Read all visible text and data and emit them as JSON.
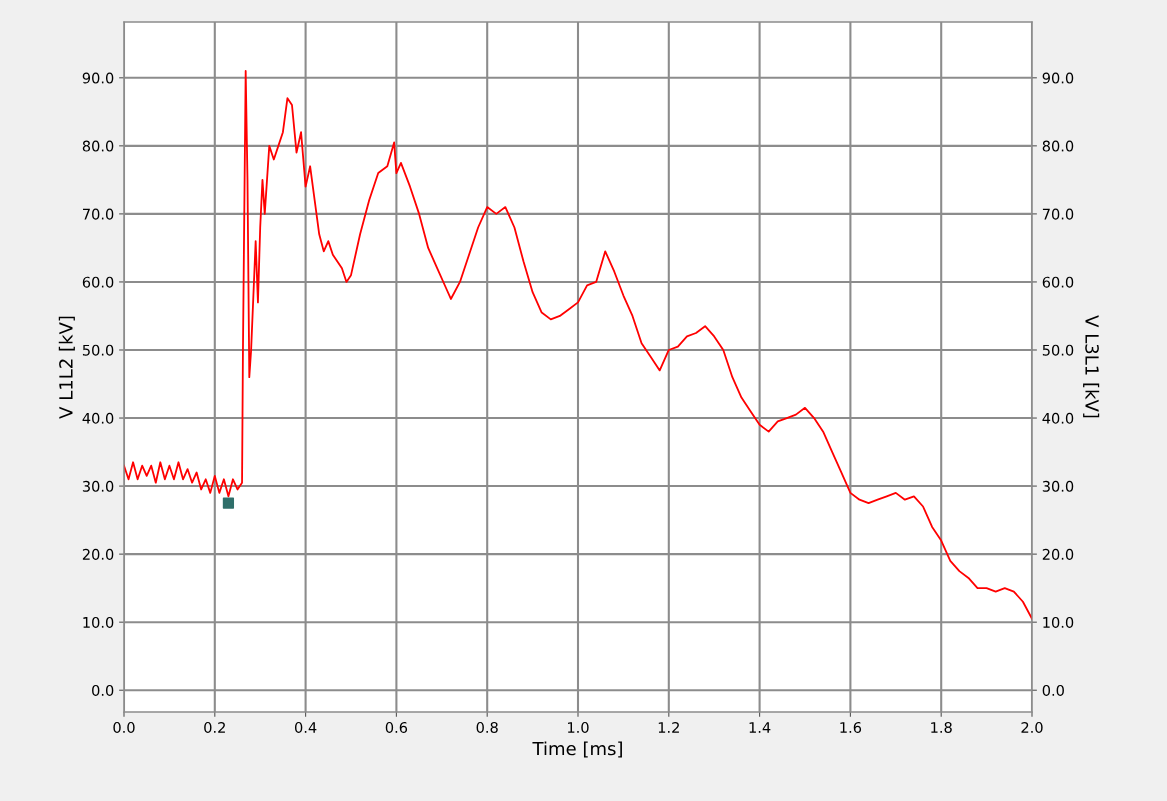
{
  "chart_data": {
    "type": "line",
    "xlabel": "Time [ms]",
    "ylabel": "V L1L2 [kV]",
    "y2label": "V L3L1 [kV]",
    "xlim": [
      0,
      2.0
    ],
    "ylim": [
      -3.2,
      98.2
    ],
    "y2lim": [
      -3.2,
      98.2
    ],
    "xticks": [
      {
        "value": 0,
        "label": "0.0"
      },
      {
        "value": 0.2,
        "label": "0.2"
      },
      {
        "value": 0.4,
        "label": "0.4"
      },
      {
        "value": 0.6,
        "label": "0.6"
      },
      {
        "value": 0.8,
        "label": "0.8"
      },
      {
        "value": 1.0,
        "label": "1.0"
      },
      {
        "value": 1.2,
        "label": "1.2"
      },
      {
        "value": 1.4,
        "label": "1.4"
      },
      {
        "value": 1.6,
        "label": "1.6"
      },
      {
        "value": 1.8,
        "label": "1.8"
      },
      {
        "value": 2.0,
        "label": "2.0"
      }
    ],
    "yticks": [
      {
        "value": 0,
        "label": "0.0"
      },
      {
        "value": 10,
        "label": "10.0"
      },
      {
        "value": 20,
        "label": "20.0"
      },
      {
        "value": 30,
        "label": "30.0"
      },
      {
        "value": 40,
        "label": "40.0"
      },
      {
        "value": 50,
        "label": "50.0"
      },
      {
        "value": 60,
        "label": "60.0"
      },
      {
        "value": 70,
        "label": "70.0"
      },
      {
        "value": 80,
        "label": "80.0"
      },
      {
        "value": 90,
        "label": "90.0"
      }
    ],
    "y2ticks": [
      {
        "value": 0,
        "label": "0.0"
      },
      {
        "value": 10,
        "label": "10.0"
      },
      {
        "value": 20,
        "label": "20.0"
      },
      {
        "value": 30,
        "label": "30.0"
      },
      {
        "value": 40,
        "label": "40.0"
      },
      {
        "value": 50,
        "label": "50.0"
      },
      {
        "value": 60,
        "label": "60.0"
      },
      {
        "value": 70,
        "label": "70.0"
      },
      {
        "value": 80,
        "label": "80.0"
      },
      {
        "value": 90,
        "label": "90.0"
      }
    ],
    "grid": true,
    "line_style": "solid",
    "marker": "none",
    "series": [
      {
        "color": "#ff0000",
        "x": [
          0.0,
          0.01,
          0.02,
          0.03,
          0.04,
          0.05,
          0.06,
          0.07,
          0.08,
          0.09,
          0.1,
          0.11,
          0.12,
          0.13,
          0.14,
          0.15,
          0.16,
          0.17,
          0.18,
          0.19,
          0.2,
          0.21,
          0.22,
          0.23,
          0.24,
          0.25,
          0.26,
          0.262,
          0.268,
          0.272,
          0.276,
          0.28,
          0.285,
          0.29,
          0.295,
          0.3,
          0.305,
          0.31,
          0.32,
          0.33,
          0.34,
          0.35,
          0.36,
          0.37,
          0.38,
          0.39,
          0.4,
          0.41,
          0.42,
          0.43,
          0.44,
          0.45,
          0.46,
          0.47,
          0.48,
          0.49,
          0.5,
          0.52,
          0.54,
          0.56,
          0.58,
          0.595,
          0.6,
          0.61,
          0.63,
          0.65,
          0.67,
          0.69,
          0.71,
          0.72,
          0.74,
          0.76,
          0.78,
          0.8,
          0.82,
          0.84,
          0.86,
          0.88,
          0.9,
          0.92,
          0.94,
          0.96,
          0.98,
          1.0,
          1.02,
          1.04,
          1.06,
          1.08,
          1.1,
          1.12,
          1.14,
          1.16,
          1.18,
          1.2,
          1.22,
          1.24,
          1.26,
          1.28,
          1.3,
          1.32,
          1.34,
          1.36,
          1.38,
          1.4,
          1.42,
          1.44,
          1.46,
          1.48,
          1.5,
          1.52,
          1.54,
          1.56,
          1.58,
          1.6,
          1.62,
          1.64,
          1.66,
          1.68,
          1.7,
          1.72,
          1.74,
          1.76,
          1.78,
          1.8,
          1.82,
          1.84,
          1.86,
          1.88,
          1.9,
          1.92,
          1.94,
          1.96,
          1.98,
          2.0
        ],
        "values": [
          33,
          31,
          33.5,
          31,
          33,
          31.5,
          33,
          30.5,
          33.5,
          31,
          33,
          31,
          33.5,
          31,
          32.5,
          30.5,
          32,
          29.5,
          31,
          29,
          31.5,
          29,
          31,
          28.5,
          31,
          29.5,
          30.5,
          50,
          91,
          75,
          46,
          50,
          58,
          66,
          57,
          68,
          75,
          70,
          80,
          78,
          80,
          82,
          87,
          86,
          79,
          82,
          74,
          77,
          72,
          67,
          64.5,
          66,
          64,
          63,
          62,
          60,
          61,
          67,
          72,
          76,
          77,
          80.5,
          76,
          77.5,
          74,
          70,
          65,
          62,
          59,
          57.5,
          60,
          64,
          68,
          71,
          70,
          71,
          68,
          63,
          58.5,
          55.5,
          54.5,
          55,
          56,
          57,
          59.5,
          60,
          64.5,
          61.5,
          58,
          55,
          51,
          49,
          47,
          50,
          50.5,
          52,
          52.5,
          53.5,
          52,
          50,
          46,
          43,
          41,
          39,
          38,
          39.5,
          40,
          40.5,
          41.5,
          40,
          38,
          35,
          32,
          29,
          28,
          27.5,
          28,
          28.5,
          29,
          28,
          28.5,
          27,
          24,
          22,
          19,
          17.5,
          16.5,
          15,
          15,
          14.5,
          15,
          14.5,
          13,
          10.5
        ]
      },
      {
        "type": "scatter",
        "color": "#2f6f6a",
        "marker": "square",
        "x": [
          0.23
        ],
        "values": [
          27.5
        ]
      }
    ]
  }
}
